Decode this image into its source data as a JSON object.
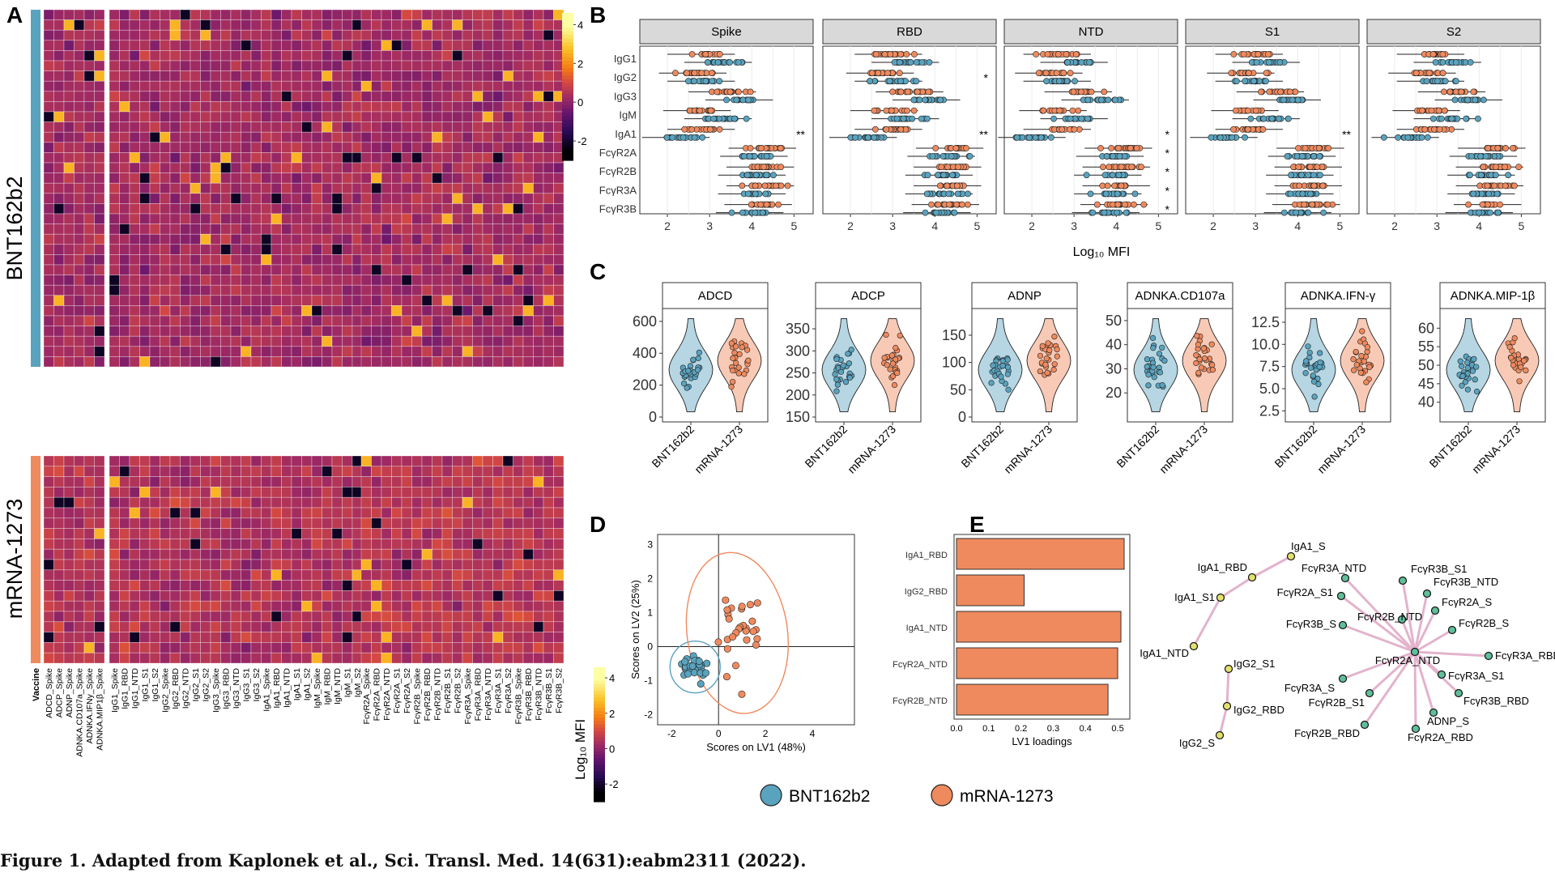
{
  "panels": [
    "A",
    "B",
    "C",
    "D",
    "E"
  ],
  "caption": "Figure 1. Adapted from Kaplonek et al., Sci. Transl. Med. 14(631):eabm2311 (2022).",
  "colors": {
    "bnt": "#5aa3bf",
    "mrna": "#ef8a5e",
    "strip": "#d9d9d9",
    "network": "#e3b3cc",
    "node": "#e2e16c"
  },
  "groups": [
    "BNT162b2",
    "mRNA-1273"
  ],
  "panel_a": {
    "vaccine_label": "Vaccine",
    "columns_group1": [
      "ADCD_Spike",
      "ADCP_Spike",
      "ADNP_Spike",
      "ADNKA.CD107a_Spike",
      "ADNKA.IFNy_Spike",
      "ADNKA.MIP1β_Spike"
    ],
    "columns_group2": [
      "IgG1_Spike",
      "IgG1_RBD",
      "IgG1_NTD",
      "IgG1_S1",
      "IgG1_S2",
      "IgG2_Spike",
      "IgG2_RBD",
      "IgG2_NTD",
      "IgG2_S1",
      "IgG2_S2",
      "IgG3_Spike",
      "IgG3_RBD",
      "IgG3_NTD",
      "IgG3_S1",
      "IgG3_S2",
      "IgA1_Spike",
      "IgA1_RBD",
      "IgA1_NTD",
      "IgA1_S1",
      "IgA1_S2",
      "IgM_Spike",
      "IgM_RBD",
      "IgM_NTD",
      "IgM_S1",
      "IgM_S2"
    ],
    "columns_group3": [
      "FcγR2A_Spike",
      "FcγR2A_RBD",
      "FcγR2A_NTD",
      "FcγR2A_S1",
      "FcγR2A_S2",
      "FcγR2B_Spike",
      "FcγR2B_RBD",
      "FcγR2B_NTD",
      "FcγR2B_S1",
      "FcγR2B_S2",
      "FcγR3A_Spike",
      "FcγR3A_RBD",
      "FcγR3A_NTD",
      "FcγR3A_S1",
      "FcγR3A_S2",
      "FcγR3B_Spike",
      "FcγR3B_RBD",
      "FcγR3B_NTD",
      "FcγR3B_S1",
      "FcγR3B_S2"
    ],
    "colorbar_ticks": [
      "4",
      "2",
      "0",
      "-2"
    ],
    "legend_title": "Log₁₀ MFI",
    "legend_ticks": [
      "4",
      "2",
      "0",
      "-2"
    ]
  },
  "panel_b": {
    "facets": [
      "Spike",
      "RBD",
      "NTD",
      "S1",
      "S2"
    ],
    "rows": [
      "IgG1",
      "IgG2",
      "IgG3",
      "IgM",
      "IgA1",
      "FcγR2A",
      "FcγR2B",
      "FcγR3A",
      "FcγR3B"
    ],
    "x_ticks": [
      "2",
      "3",
      "4",
      "5"
    ],
    "xlim": [
      1.5,
      5.3
    ],
    "xlabel": "Log₁₀ MFI",
    "significance": [
      {
        "facet": 0,
        "row": 4,
        "label": "**"
      },
      {
        "facet": 1,
        "row": 1,
        "label": "*"
      },
      {
        "facet": 1,
        "row": 4,
        "label": "**"
      },
      {
        "facet": 2,
        "row": 4,
        "label": "*"
      },
      {
        "facet": 2,
        "row": 5,
        "label": "*"
      },
      {
        "facet": 2,
        "row": 6,
        "label": "*"
      },
      {
        "facet": 2,
        "row": 7,
        "label": "*"
      },
      {
        "facet": 2,
        "row": 8,
        "label": "*"
      },
      {
        "facet": 3,
        "row": 4,
        "label": "**"
      }
    ]
  },
  "panel_c": {
    "xcats": [
      "BNT162b2",
      "mRNA-1273"
    ],
    "facets": [
      {
        "title": "ADCD",
        "ticks": [
          "600",
          "400",
          "200",
          "0"
        ],
        "ylim": [
          0,
          650
        ]
      },
      {
        "title": "ADCP",
        "ticks": [
          "350",
          "300",
          "250",
          "200",
          "150"
        ],
        "ylim": [
          150,
          385
        ]
      },
      {
        "title": "ADNP",
        "ticks": [
          "150",
          "100",
          "50",
          "0"
        ],
        "ylim": [
          0,
          190
        ]
      },
      {
        "title": "ADNKA.CD107a",
        "ticks": [
          "50",
          "40",
          "30",
          "20"
        ],
        "ylim": [
          10,
          53
        ]
      },
      {
        "title": "ADNKA.IFN-γ",
        "ticks": [
          "12.5",
          "10.0",
          "7.5",
          "5.0",
          "2.5"
        ],
        "ylim": [
          1.8,
          13.5
        ]
      },
      {
        "title": "ADNKA.MIP-1β",
        "ticks": [
          "60",
          "55",
          "50",
          "45",
          "40"
        ],
        "ylim": [
          36,
          64
        ]
      }
    ]
  },
  "panel_d": {
    "scatter": {
      "xlabel": "Scores on LV1 (48%)",
      "ylabel": "Scores on LV2 (25%)",
      "x_ticks": [
        "-2",
        "0",
        "2",
        "4"
      ],
      "y_ticks": [
        "3",
        "2",
        "1",
        "0",
        "-1",
        "-2"
      ],
      "xlim": [
        -2.6,
        5.8
      ],
      "ylim": [
        -2.3,
        3.3
      ]
    },
    "bars": {
      "labels": [
        "IgA1_RBD",
        "IgG2_RBD",
        "IgA1_NTD",
        "FcγR2A_NTD",
        "FcγR2B_NTD"
      ],
      "values": [
        0.52,
        0.21,
        0.51,
        0.5,
        0.47
      ],
      "x_ticks": [
        "0.0",
        "0.1",
        "0.2",
        "0.3",
        "0.4",
        "0.5"
      ],
      "xlim": [
        0,
        0.53
      ],
      "xlabel": "LV1 loadings"
    }
  },
  "panel_e": {
    "nodes": [
      "IgA1_S",
      "IgA1_RBD",
      "IgA1_S1",
      "IgA1_NTD",
      "IgG2_S1",
      "IgG2_RBD",
      "IgG2_S",
      "FcγR3A_NTD",
      "FcγR3B_S1",
      "FcγR3B_NTD",
      "FcγR2A_S1",
      "FcγR2A_S",
      "FcγR3B_S",
      "FcγR2B_NTD",
      "FcγR2B_S",
      "FcγR2A_NTD",
      "FcγR3A_RBD",
      "FcγR3A_S",
      "FcγR3A_S1",
      "FcγR2B_S1",
      "FcγR3B_RBD",
      "ADNP_S",
      "FcγR2B_RBD",
      "FcγR2A_RBD"
    ]
  },
  "legend": [
    "BNT162b2",
    "mRNA-1273"
  ]
}
